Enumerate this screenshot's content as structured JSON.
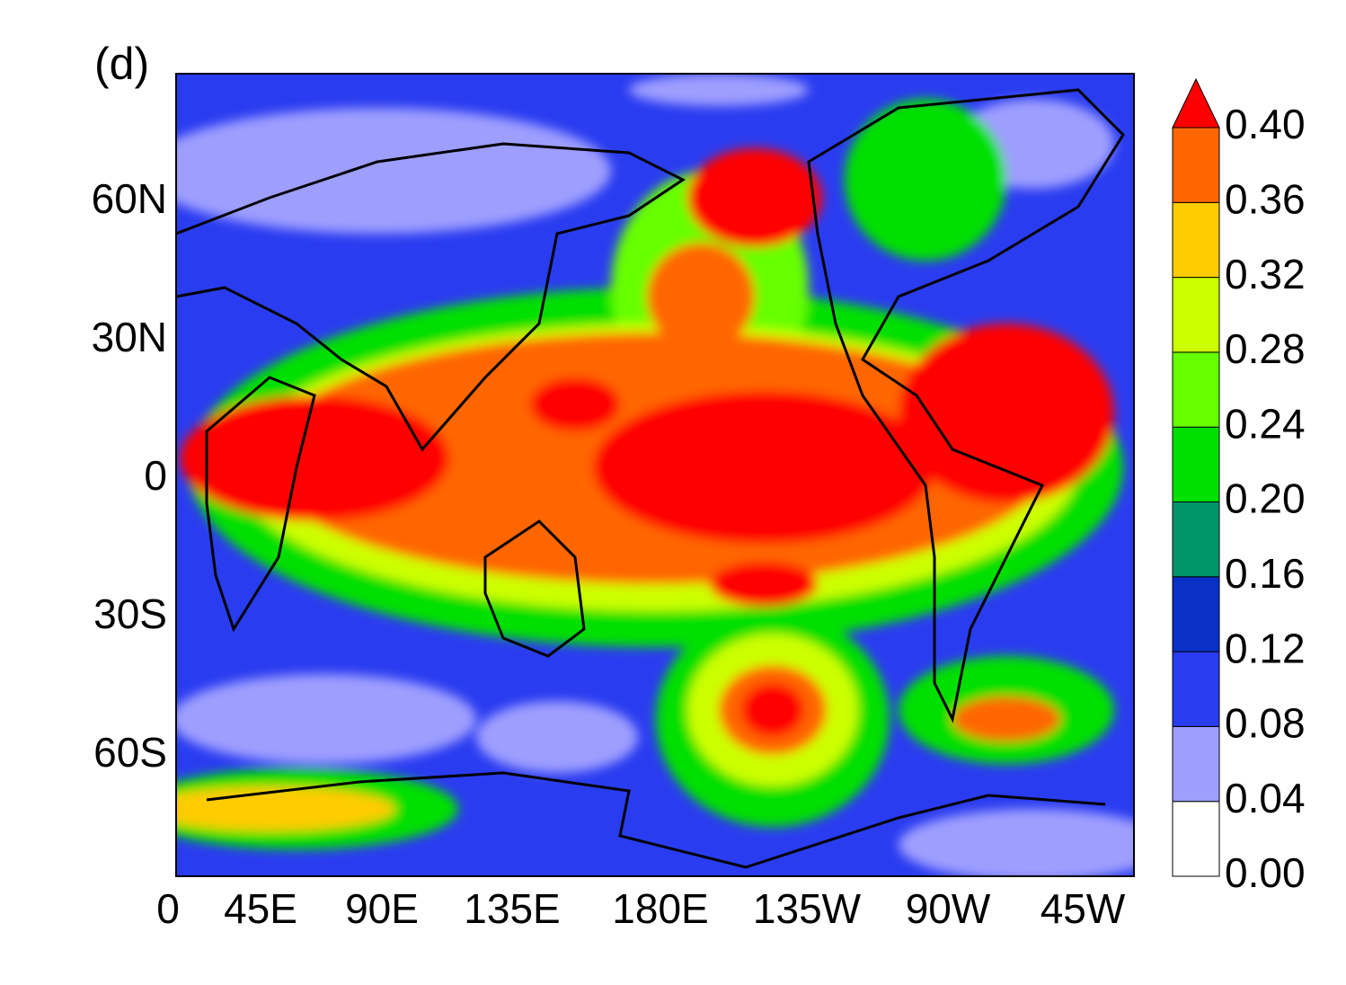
{
  "panel_label": "(d)",
  "x_ticks": [
    "0",
    "45E",
    "90E",
    "135E",
    "180E",
    "135W",
    "90W",
    "45W"
  ],
  "y_ticks": [
    "60N",
    "30N",
    "0",
    "30S",
    "60S"
  ],
  "colorbar": {
    "labels": [
      "0.00",
      "0.04",
      "0.08",
      "0.12",
      "0.16",
      "0.20",
      "0.24",
      "0.28",
      "0.32",
      "0.36",
      "0.40"
    ],
    "colors": [
      "#ffffff",
      "#9e9eff",
      "#2a3cf0",
      "#0a30c8",
      "#00966a",
      "#00e000",
      "#66ff00",
      "#ccff00",
      "#ffcc00",
      "#ff6600",
      "#ff0000"
    ]
  }
}
